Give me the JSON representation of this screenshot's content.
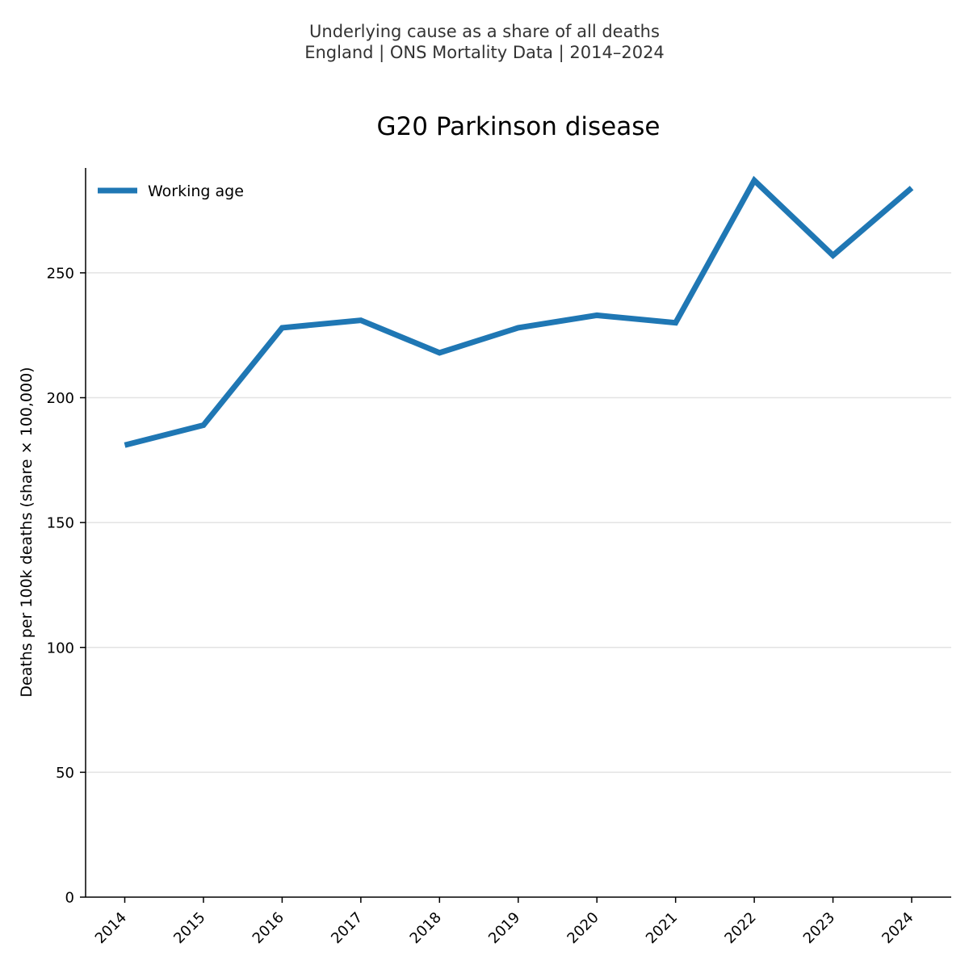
{
  "header": {
    "suptitle_line1": "Underlying cause as a share of all deaths",
    "suptitle_line2": "England | ONS Mortality Data | 2014–2024"
  },
  "chart_data": {
    "type": "line",
    "title": "G20 Parkinson disease",
    "xlabel": "",
    "ylabel": "Deaths per 100k deaths (share × 100,000)",
    "categories": [
      "2014",
      "2015",
      "2016",
      "2017",
      "2018",
      "2019",
      "2020",
      "2021",
      "2022",
      "2023",
      "2024"
    ],
    "series": [
      {
        "name": "Working age",
        "color": "#1f77b4",
        "values": [
          181,
          189,
          228,
          231,
          218,
          228,
          233,
          230,
          287,
          257,
          284
        ]
      }
    ],
    "ylim": [
      0,
      292
    ],
    "yticks": [
      0,
      50,
      100,
      150,
      200,
      250
    ],
    "grid": "horizontal",
    "legend_position": "top-left"
  }
}
